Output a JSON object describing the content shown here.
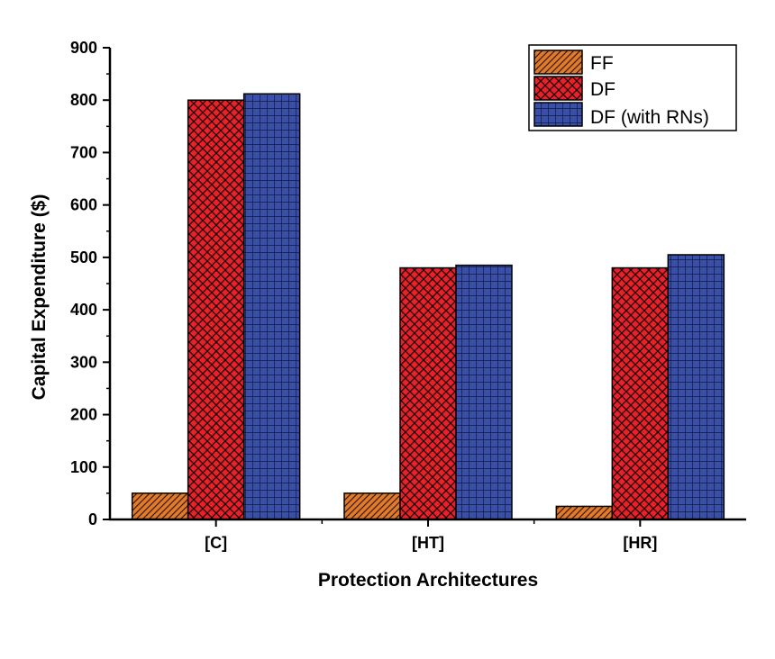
{
  "chart_data": {
    "type": "bar",
    "title": "",
    "xlabel": "Protection Architectures",
    "ylabel": "Capital Expenditure ($)",
    "categories": [
      "[C]",
      "[HT]",
      "[HR]"
    ],
    "series": [
      {
        "name": "FF",
        "values": [
          50,
          50,
          25
        ],
        "color": "#e07a2c",
        "pattern": "diagonal-hatch"
      },
      {
        "name": "DF",
        "values": [
          800,
          480,
          480
        ],
        "color": "#e8212a",
        "pattern": "crosshatch"
      },
      {
        "name": "DF (with RNs)",
        "values": [
          812,
          485,
          505
        ],
        "color": "#3a4fa8",
        "pattern": "grid"
      }
    ],
    "ylim": [
      0,
      900
    ],
    "yticks": [
      "0",
      "100",
      "200",
      "300",
      "400",
      "500",
      "600",
      "700",
      "800",
      "900"
    ],
    "grid": false,
    "legend_position": "top-right"
  }
}
